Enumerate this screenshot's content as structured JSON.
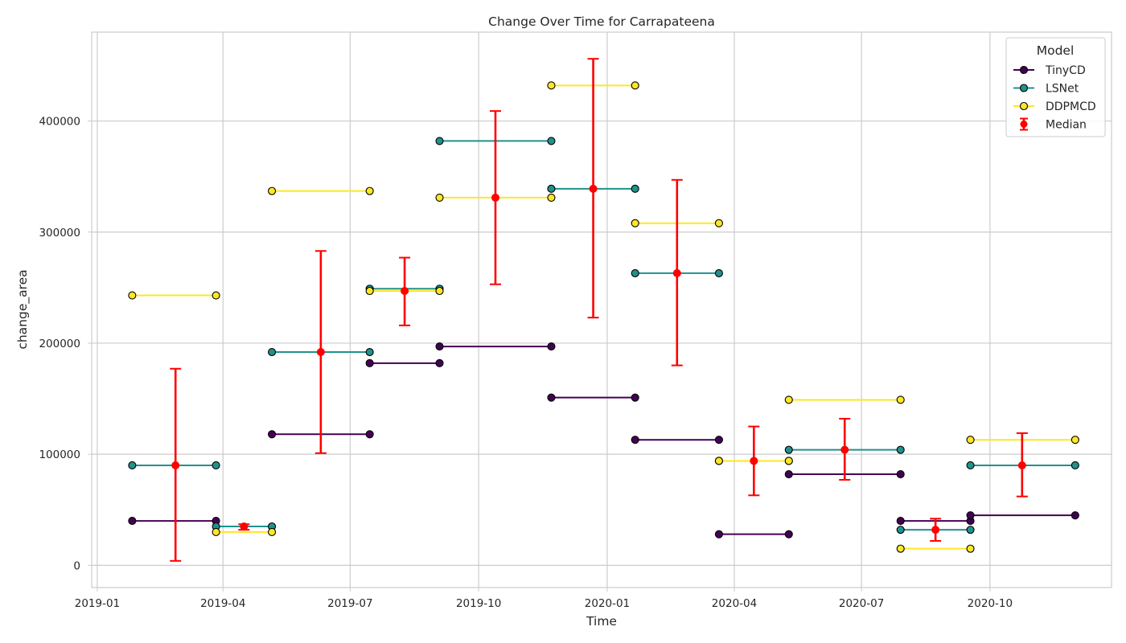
{
  "chart_data": {
    "type": "line",
    "title": "Change Over Time for Carrapateena",
    "xlabel": "Time",
    "ylabel": "change_area",
    "x_type": "date",
    "xlim": [
      "2018-12-28",
      "2020-12-27"
    ],
    "ylim": [
      -20000,
      480000
    ],
    "x_ticks": [
      "2019-01",
      "2019-04",
      "2019-07",
      "2019-10",
      "2020-01",
      "2020-04",
      "2020-07",
      "2020-10"
    ],
    "y_ticks": [
      0,
      100000,
      200000,
      300000,
      400000
    ],
    "y_tick_labels": [
      "0",
      "100000",
      "200000",
      "300000",
      "400000"
    ],
    "grid": true,
    "legend": {
      "title": "Model",
      "placement": "top-right",
      "entries": [
        "TinyCD",
        "LSNet",
        "DDPMCD",
        "Median"
      ]
    },
    "colors": {
      "TinyCD": "#440154",
      "LSNet": "#21918c",
      "DDPMCD": "#fde725",
      "Median": "#ff0000"
    },
    "series": [
      {
        "name": "TinyCD",
        "segments": [
          {
            "start": "2019-01-26",
            "end": "2019-03-27",
            "value": 40000
          },
          {
            "start": "2019-05-06",
            "end": "2019-07-15",
            "value": 118000
          },
          {
            "start": "2019-07-15",
            "end": "2019-09-03",
            "value": 182000
          },
          {
            "start": "2019-09-03",
            "end": "2019-11-22",
            "value": 197000
          },
          {
            "start": "2019-11-22",
            "end": "2020-01-21",
            "value": 151000
          },
          {
            "start": "2020-01-21",
            "end": "2020-03-21",
            "value": 113000
          },
          {
            "start": "2020-03-21",
            "end": "2020-05-10",
            "value": 28000
          },
          {
            "start": "2020-05-10",
            "end": "2020-07-29",
            "value": 82000
          },
          {
            "start": "2020-07-29",
            "end": "2020-09-17",
            "value": 40000
          },
          {
            "start": "2020-09-17",
            "end": "2020-12-01",
            "value": 45000
          }
        ]
      },
      {
        "name": "LSNet",
        "segments": [
          {
            "start": "2019-01-26",
            "end": "2019-03-27",
            "value": 90000
          },
          {
            "start": "2019-03-27",
            "end": "2019-05-06",
            "value": 35000
          },
          {
            "start": "2019-05-06",
            "end": "2019-07-15",
            "value": 192000
          },
          {
            "start": "2019-07-15",
            "end": "2019-09-03",
            "value": 249000
          },
          {
            "start": "2019-09-03",
            "end": "2019-11-22",
            "value": 382000
          },
          {
            "start": "2019-11-22",
            "end": "2020-01-21",
            "value": 339000
          },
          {
            "start": "2020-01-21",
            "end": "2020-03-21",
            "value": 263000
          },
          {
            "start": "2020-03-21",
            "end": "2020-05-10",
            "value": 94000
          },
          {
            "start": "2020-05-10",
            "end": "2020-07-29",
            "value": 104000
          },
          {
            "start": "2020-07-29",
            "end": "2020-09-17",
            "value": 32000
          },
          {
            "start": "2020-09-17",
            "end": "2020-12-01",
            "value": 90000
          }
        ]
      },
      {
        "name": "DDPMCD",
        "segments": [
          {
            "start": "2019-01-26",
            "end": "2019-03-27",
            "value": 243000
          },
          {
            "start": "2019-03-27",
            "end": "2019-05-06",
            "value": 30000
          },
          {
            "start": "2019-05-06",
            "end": "2019-07-15",
            "value": 337000
          },
          {
            "start": "2019-07-15",
            "end": "2019-09-03",
            "value": 247000
          },
          {
            "start": "2019-09-03",
            "end": "2019-11-22",
            "value": 331000
          },
          {
            "start": "2019-11-22",
            "end": "2020-01-21",
            "value": 432000
          },
          {
            "start": "2020-01-21",
            "end": "2020-03-21",
            "value": 308000
          },
          {
            "start": "2020-03-21",
            "end": "2020-05-10",
            "value": 94000
          },
          {
            "start": "2020-05-10",
            "end": "2020-07-29",
            "value": 149000
          },
          {
            "start": "2020-07-29",
            "end": "2020-09-17",
            "value": 15000
          },
          {
            "start": "2020-09-17",
            "end": "2020-12-01",
            "value": 113000
          }
        ]
      }
    ],
    "median": [
      {
        "date": "2019-02-26",
        "value": 90000,
        "low": 4000,
        "high": 177000
      },
      {
        "date": "2019-04-16",
        "value": 35000,
        "low": 32000,
        "high": 37000
      },
      {
        "date": "2019-06-10",
        "value": 192000,
        "low": 101000,
        "high": 283000
      },
      {
        "date": "2019-08-09",
        "value": 247000,
        "low": 216000,
        "high": 277000
      },
      {
        "date": "2019-10-13",
        "value": 331000,
        "low": 253000,
        "high": 409000
      },
      {
        "date": "2019-12-22",
        "value": 339000,
        "low": 223000,
        "high": 456000
      },
      {
        "date": "2020-02-20",
        "value": 263000,
        "low": 180000,
        "high": 347000
      },
      {
        "date": "2020-04-15",
        "value": 94000,
        "low": 63000,
        "high": 125000
      },
      {
        "date": "2020-06-19",
        "value": 104000,
        "low": 77000,
        "high": 132000
      },
      {
        "date": "2020-08-23",
        "value": 32000,
        "low": 22000,
        "high": 42000
      },
      {
        "date": "2020-10-24",
        "value": 90000,
        "low": 62000,
        "high": 119000
      }
    ]
  }
}
